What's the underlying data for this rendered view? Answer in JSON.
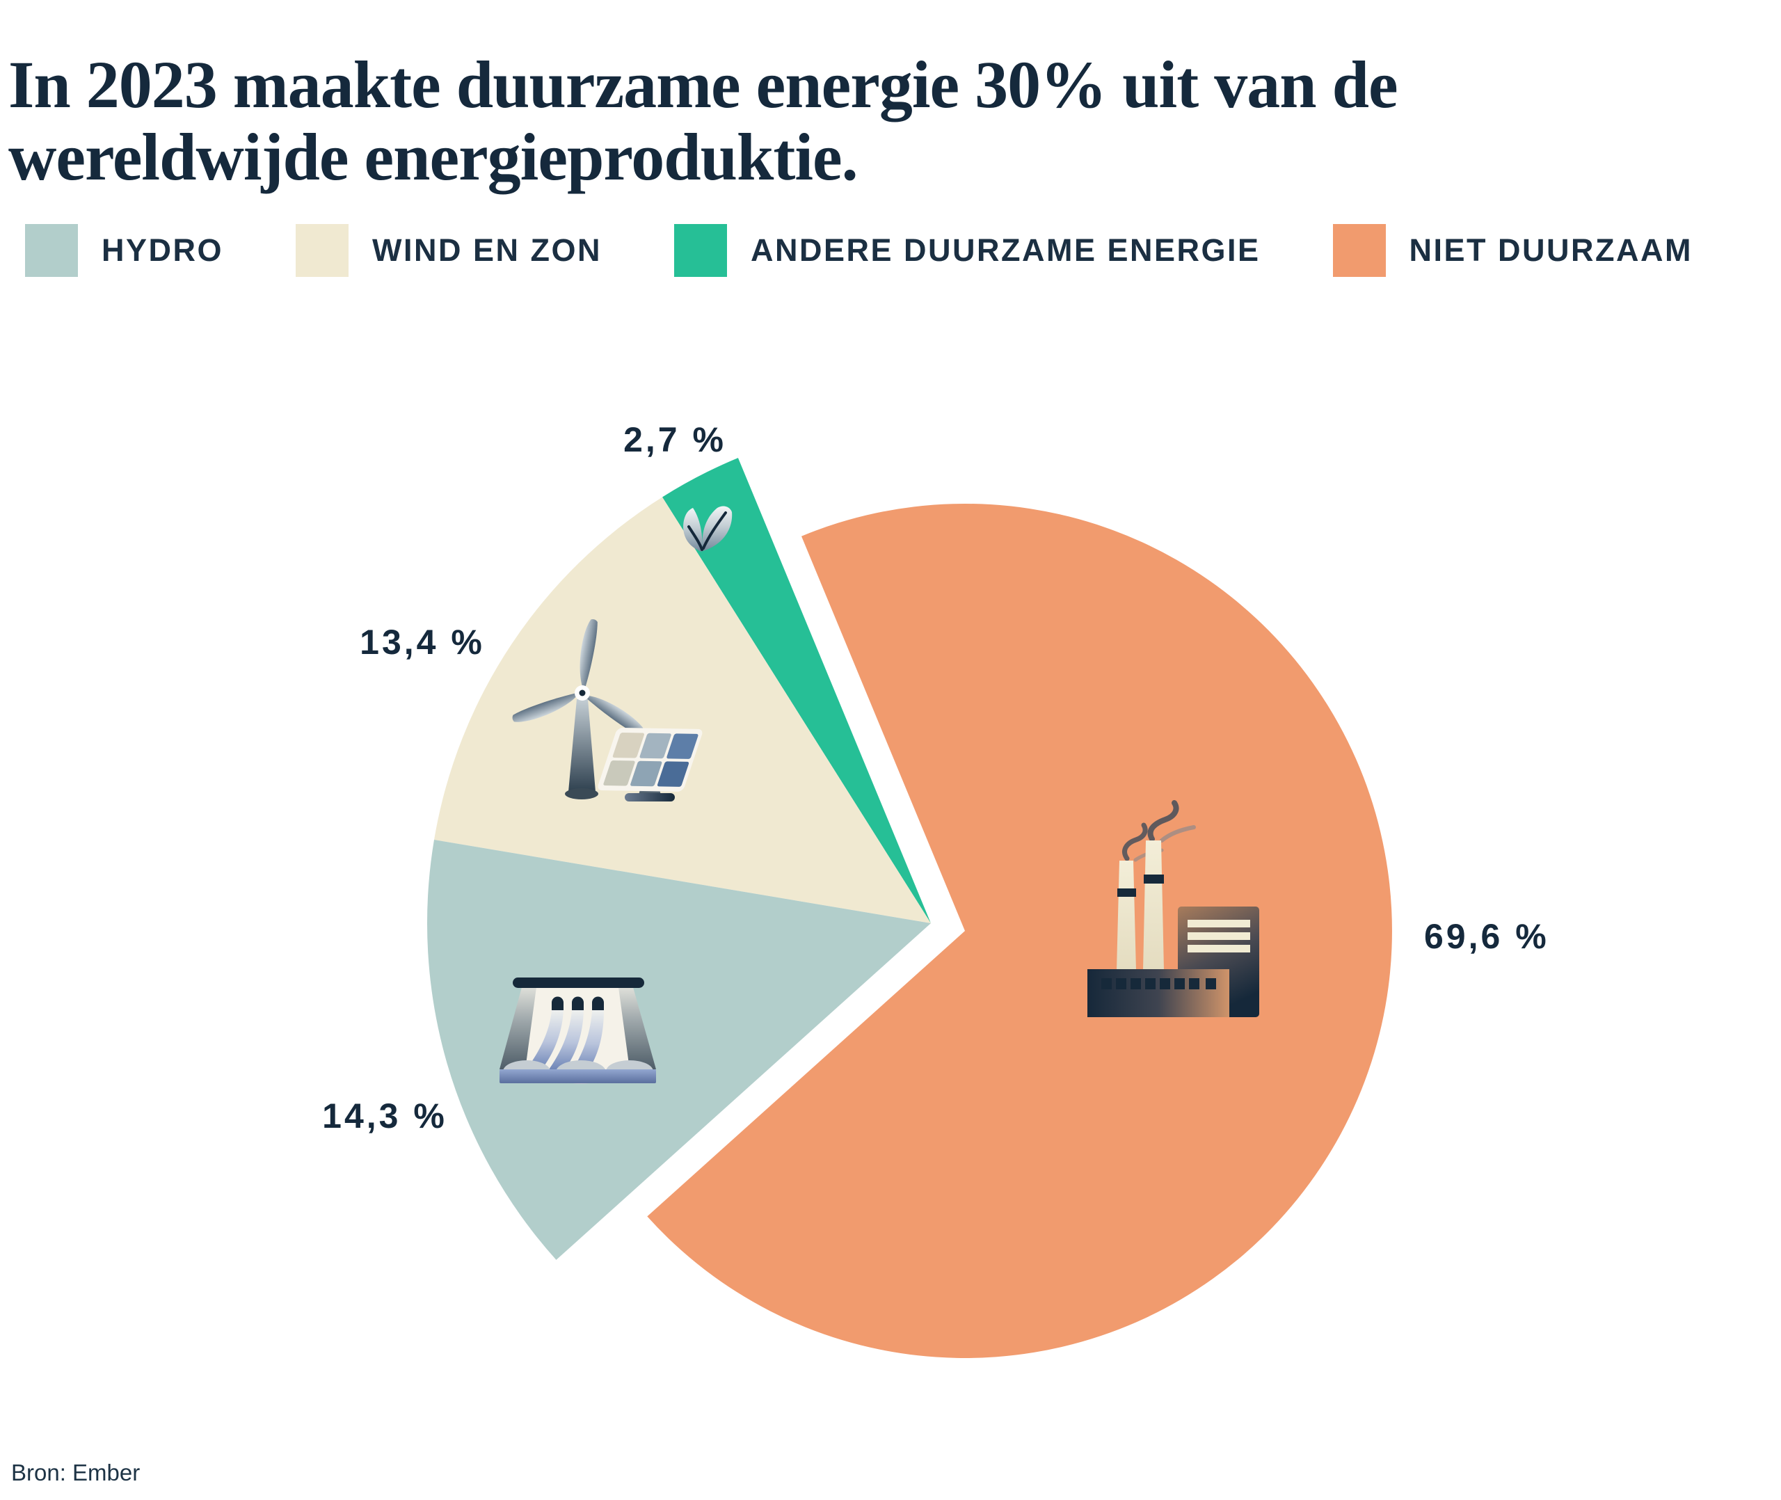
{
  "page": {
    "background": "#ffffff",
    "text_color": "#15293c"
  },
  "title": {
    "line1": "In 2023 maakte duurzame energie 30% uit van de",
    "line2": "wereldwijde energieproduktie.",
    "full": "In 2023 maakte duurzame energie 30% uit van de wereldwijde energieproduktie."
  },
  "legend": {
    "items": [
      {
        "label": "HYDRO",
        "color": "#b2cecb"
      },
      {
        "label": "WIND EN ZON",
        "color": "#f0e9d1"
      },
      {
        "label": "ANDERE DUURZAME ENERGIE",
        "color": "#26bf96"
      },
      {
        "label": "NIET DUURZAAM",
        "color": "#f19b6e"
      }
    ]
  },
  "source": {
    "text": "Bron: Ember"
  },
  "chart_data": {
    "type": "pie",
    "title": "In 2023 maakte duurzame energie 30% uit van de wereldwijde energieproduktie.",
    "unit": "percent",
    "legend_position": "top",
    "slices": [
      {
        "id": "andere-duurzame-energie",
        "label": "Andere duurzame energie",
        "value": 2.7,
        "display": "2,7 %",
        "color": "#26bf96",
        "group": "duurzaam",
        "icon": "leaf-icon"
      },
      {
        "id": "wind-en-zon",
        "label": "Wind en zon",
        "value": 13.4,
        "display": "13,4 %",
        "color": "#f0e9d1",
        "group": "duurzaam",
        "icon": "wind-turbine-solar-panel-icon"
      },
      {
        "id": "hydro",
        "label": "Hydro",
        "value": 14.3,
        "display": "14,3 %",
        "color": "#b2cecb",
        "group": "duurzaam",
        "icon": "dam-icon"
      },
      {
        "id": "niet-duurzaam",
        "label": "Niet duurzaam",
        "value": 69.6,
        "display": "69,6 %",
        "color": "#f19b6e",
        "group": "niet-duurzaam",
        "icon": "factory-icon"
      }
    ],
    "layout": {
      "start_angle_deg": 112.5,
      "direction": "ccw",
      "renewable_center": [
        1338,
        1327
      ],
      "renewable_radius": 724,
      "fossil_center": [
        1387,
        1338
      ],
      "fossil_radius": 614,
      "exploded": true
    }
  }
}
